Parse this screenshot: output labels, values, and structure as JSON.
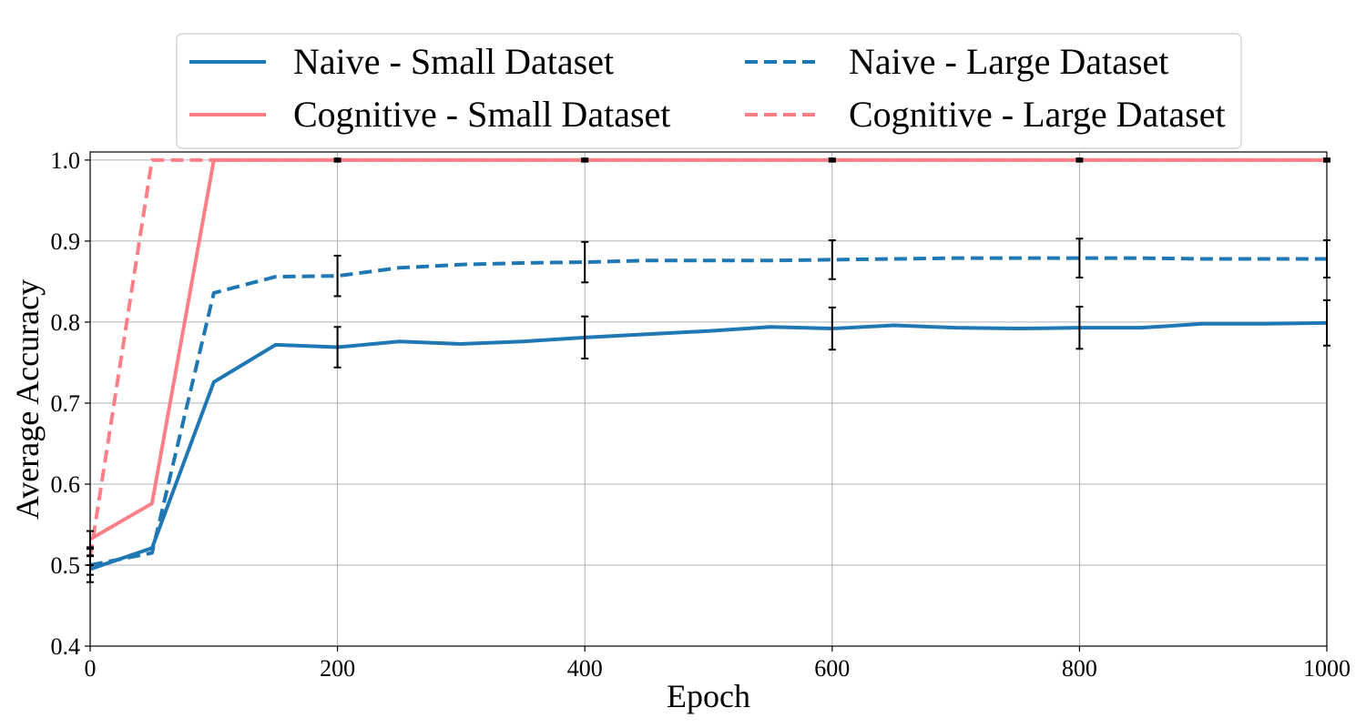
{
  "chart_data": {
    "type": "line",
    "title": "",
    "xlabel": "Epoch",
    "ylabel": "Average Accuracy",
    "xlim": [
      0,
      1000
    ],
    "ylim": [
      0.4,
      1.01
    ],
    "xticks": [
      0,
      200,
      400,
      600,
      800,
      1000
    ],
    "xtick_labels": [
      "0",
      "200",
      "400",
      "600",
      "800",
      "1000"
    ],
    "yticks": [
      0.4,
      0.5,
      0.6,
      0.7,
      0.8,
      0.9,
      1.0
    ],
    "ytick_labels": [
      "0.4",
      "0.5",
      "0.6",
      "0.7",
      "0.8",
      "0.9",
      "1.0"
    ],
    "grid": true,
    "legend_position": "top-center",
    "x": [
      0,
      50,
      100,
      150,
      200,
      250,
      300,
      350,
      400,
      450,
      500,
      550,
      600,
      650,
      700,
      750,
      800,
      850,
      900,
      950,
      1000
    ],
    "series": [
      {
        "name": "Naive - Small Dataset",
        "color": "#1f77b4",
        "style": "solid",
        "values": [
          0.495,
          0.521,
          0.726,
          0.772,
          0.769,
          0.776,
          0.773,
          0.776,
          0.781,
          0.785,
          0.789,
          0.794,
          0.792,
          0.796,
          0.793,
          0.792,
          0.793,
          0.793,
          0.798,
          0.798,
          0.799
        ],
        "error_x": [
          0,
          200,
          400,
          600,
          800,
          1000
        ],
        "error": [
          0.016,
          0.025,
          0.026,
          0.026,
          0.026,
          0.028
        ]
      },
      {
        "name": "Naive - Large Dataset",
        "color": "#1f77b4",
        "style": "dashed",
        "values": [
          0.5,
          0.515,
          0.836,
          0.856,
          0.857,
          0.867,
          0.871,
          0.873,
          0.874,
          0.876,
          0.876,
          0.876,
          0.877,
          0.878,
          0.879,
          0.879,
          0.879,
          0.879,
          0.878,
          0.878,
          0.878
        ],
        "error_x": [
          0,
          200,
          400,
          600,
          800,
          1000
        ],
        "error": [
          0.012,
          0.025,
          0.025,
          0.024,
          0.024,
          0.023
        ]
      },
      {
        "name": "Cognitive - Small Dataset",
        "color": "#ff7f87",
        "style": "solid",
        "values": [
          0.532,
          0.576,
          1.0,
          1.0,
          1.0,
          1.0,
          1.0,
          1.0,
          1.0,
          1.0,
          1.0,
          1.0,
          1.0,
          1.0,
          1.0,
          1.0,
          1.0,
          1.0,
          1.0,
          1.0,
          1.0
        ],
        "error_x": [
          0,
          200,
          400,
          600,
          800,
          1000
        ],
        "error": [
          0.01,
          0.002,
          0.002,
          0.002,
          0.002,
          0.002
        ]
      },
      {
        "name": "Cognitive - Large Dataset",
        "color": "#ff7f87",
        "style": "dashed",
        "values": [
          0.51,
          1.0,
          1.0,
          1.0,
          1.0,
          1.0,
          1.0,
          1.0,
          1.0,
          1.0,
          1.0,
          1.0,
          1.0,
          1.0,
          1.0,
          1.0,
          1.0,
          1.0,
          1.0,
          1.0,
          1.0
        ],
        "error_x": [
          0,
          200,
          400,
          600,
          800,
          1000
        ],
        "error": [
          0.01,
          0.001,
          0.001,
          0.001,
          0.001,
          0.001
        ]
      }
    ]
  }
}
